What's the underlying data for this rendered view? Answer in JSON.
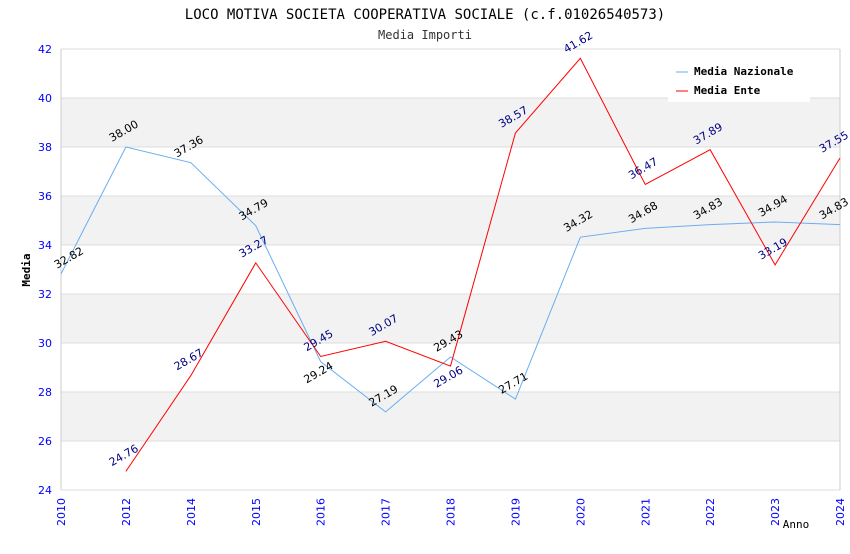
{
  "chart_data": {
    "type": "line",
    "title": "LOCO MOTIVA SOCIETA COOPERATIVA SOCIALE (c.f.01026540573)",
    "subtitle": "Media Importi",
    "xlabel": "Anno",
    "ylabel": "Media",
    "ylim": [
      24,
      42
    ],
    "yticks": [
      24,
      26,
      28,
      30,
      32,
      34,
      36,
      38,
      40,
      42
    ],
    "categories": [
      "2010",
      "2012",
      "2014",
      "2015",
      "2016",
      "2017",
      "2018",
      "2019",
      "2020",
      "2021",
      "2022",
      "2023",
      "2024"
    ],
    "legend_position": "top-right",
    "series": [
      {
        "name": "Media Nazionale",
        "color": "#6aaef0",
        "label_color": "#000000",
        "values": [
          32.82,
          38.0,
          37.36,
          34.79,
          29.24,
          27.19,
          29.43,
          27.71,
          34.32,
          34.68,
          34.83,
          34.94,
          34.83
        ]
      },
      {
        "name": "Media Ente",
        "color": "#ff0000",
        "label_color": "#000080",
        "values": [
          null,
          24.76,
          28.67,
          33.27,
          29.45,
          30.07,
          29.06,
          38.57,
          41.62,
          36.47,
          37.89,
          33.19,
          37.55
        ]
      }
    ]
  }
}
